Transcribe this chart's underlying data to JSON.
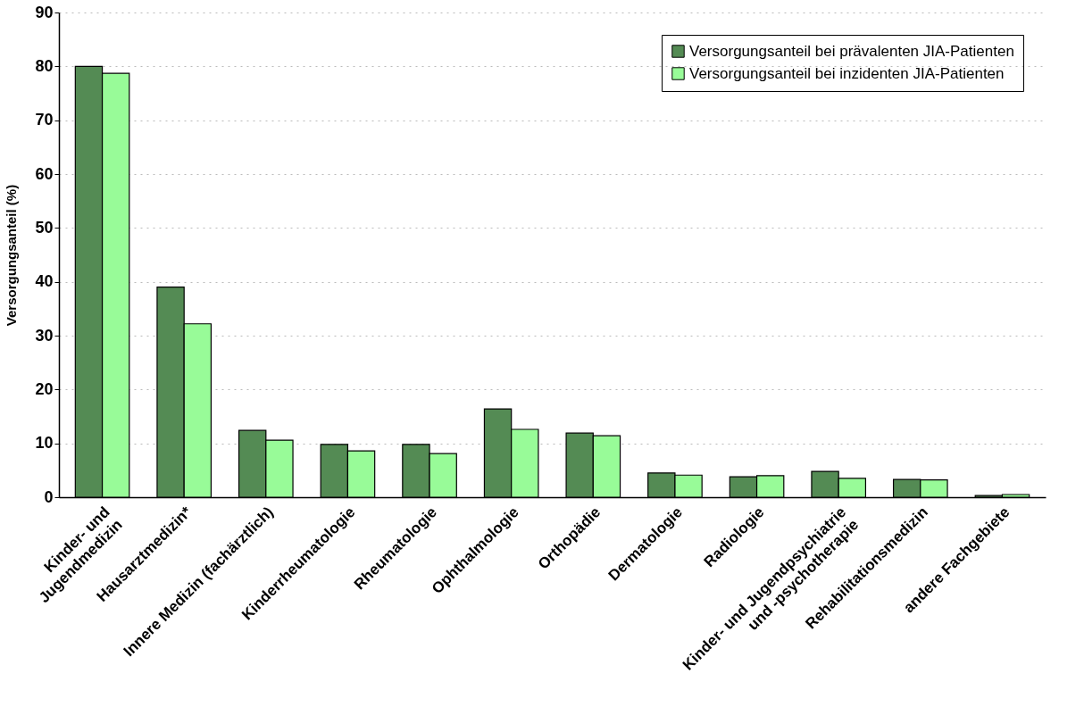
{
  "chart_data": {
    "type": "bar",
    "ylabel": "Versorgungsanteil (%)",
    "categories": [
      "Kinder- und\nJugendmedizin",
      "Hausarztmedizin*",
      "Innere Medizin (fachärztlich)",
      "Kinderrheumatologie",
      "Rheumatologie",
      "Ophthalmologie",
      "Orthopädie",
      "Dermatologie",
      "Radiologie",
      "Kinder- und Jugendpsychiatrie\nund -psychotherapie",
      "Rehabilitationsmedizin",
      "andere Fachgebiete"
    ],
    "series": [
      {
        "name": "Versorgungsanteil bei prävalenten JIA-Patienten",
        "color": "#548b54",
        "values": [
          80,
          39,
          12.4,
          9.8,
          9.8,
          16.4,
          11.9,
          4.5,
          3.8,
          4.8,
          3.3,
          0.3
        ]
      },
      {
        "name": "Versorgungsanteil bei inzidenten JIA-Patienten",
        "color": "#98fb98",
        "values": [
          78.7,
          32.2,
          10.6,
          8.6,
          8.1,
          12.6,
          11.4,
          4.1,
          4.0,
          3.5,
          3.2,
          0.5
        ]
      }
    ],
    "ylim": [
      0,
      90
    ],
    "yticks": [
      0,
      10,
      20,
      30,
      40,
      50,
      60,
      70,
      80,
      90
    ],
    "grid": "y",
    "legend": "top right"
  }
}
